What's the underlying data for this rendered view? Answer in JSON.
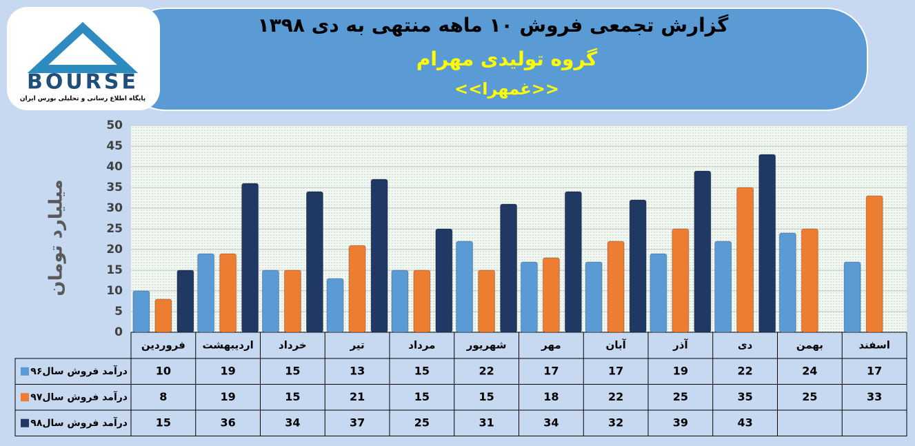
{
  "logo": {
    "brand": "BOURSE",
    "tagline": "پایگاه اطلاع رسانی و تحلیلی بورس ایران"
  },
  "chart_data": {
    "type": "bar",
    "title": "گزارش تجمعی فروش  ۱۰ ماهه منتهی به دی ۱۳۹۸",
    "subtitle": "گروه تولیدی مهرام",
    "annotation": "<<غمهرا>>",
    "y_label": "میلیارد تومان",
    "categories": [
      "فروردین",
      "اردیبهشت",
      "خرداد",
      "تیر",
      "مرداد",
      "شهریور",
      "مهر",
      "آبان",
      "آذر",
      "دی",
      "بهمن",
      "اسفند"
    ],
    "series": [
      {
        "name": "درآمد فروش سال۹۶",
        "color": "#5b9bd5",
        "values": [
          10,
          19,
          15,
          13,
          15,
          22,
          17,
          17,
          19,
          22,
          24,
          17
        ]
      },
      {
        "name": "درآمد فروش سال۹۷",
        "color": "#ed7d31",
        "values": [
          8,
          19,
          15,
          21,
          15,
          15,
          18,
          22,
          25,
          35,
          25,
          33
        ]
      },
      {
        "name": "درآمد فروش سال۹۸",
        "color": "#1f3864",
        "values": [
          15,
          36,
          34,
          37,
          25,
          31,
          34,
          32,
          39,
          43,
          null,
          null
        ]
      }
    ],
    "ylim": [
      0,
      50
    ],
    "yticks": [
      0,
      5,
      10,
      15,
      20,
      25,
      30,
      35,
      40,
      45,
      50
    ],
    "grid": true
  }
}
